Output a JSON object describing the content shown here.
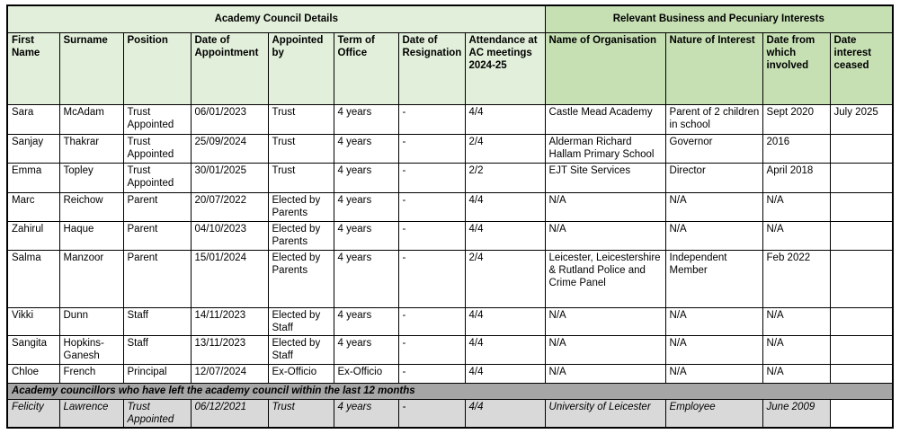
{
  "sections": {
    "left": "Academy Council Details",
    "right": "Relevant Business and Pecuniary Interests"
  },
  "columns": [
    "First Name",
    "Surname",
    "Position",
    "Date of Appointment",
    "Appointed by",
    "Term of Office",
    "Date of Resignation",
    "Attendance at AC meetings 2024-25",
    "Name of Organisation",
    "Nature of Interest",
    "Date from which involved",
    "Date interest ceased"
  ],
  "rows": [
    [
      "Sara",
      "McAdam",
      "Trust Appointed",
      "06/01/2023",
      "Trust",
      "4 years",
      "-",
      "4/4",
      "Castle Mead Academy",
      "Parent of 2 children in school",
      "Sept 2020",
      "July 2025"
    ],
    [
      "Sanjay",
      "Thakrar",
      "Trust Appointed",
      "25/09/2024",
      "Trust",
      "4 years",
      "-",
      "2/4",
      "Alderman Richard Hallam Primary School",
      "Governor",
      "2016",
      ""
    ],
    [
      "Emma",
      "Topley",
      "Trust Appointed",
      "30/01/2025",
      "Trust",
      "4 years",
      "-",
      "2/2",
      "EJT Site Services",
      "Director",
      "April 2018",
      ""
    ],
    [
      "Marc",
      "Reichow",
      "Parent",
      "20/07/2022",
      "Elected by Parents",
      "4 years",
      "-",
      "4/4",
      "N/A",
      "N/A",
      "N/A",
      ""
    ],
    [
      "Zahirul",
      "Haque",
      "Parent",
      "04/10/2023",
      "Elected by Parents",
      "4 years",
      "-",
      "4/4",
      "N/A",
      "N/A",
      "N/A",
      ""
    ],
    [
      "Salma",
      "Manzoor",
      "Parent",
      "15/01/2024",
      "Elected by Parents",
      "4 years",
      "-",
      "2/4",
      "Leicester, Leicestershire & Rutland Police and Crime Panel",
      "Independent Member",
      "Feb 2022",
      ""
    ],
    [
      "Vikki",
      "Dunn",
      "Staff",
      "14/11/2023",
      "Elected by Staff",
      "4 years",
      "-",
      "4/4",
      "N/A",
      "N/A",
      "N/A",
      ""
    ],
    [
      "Sangita",
      "Hopkins-Ganesh",
      "Staff",
      "13/11/2023",
      "Elected by Staff",
      "4 years",
      "-",
      "4/4",
      "N/A",
      "N/A",
      "N/A",
      ""
    ],
    [
      "Chloe",
      "French",
      "Principal",
      "12/07/2024",
      "Ex-Officio",
      "Ex-Officio",
      "-",
      "4/4",
      "N/A",
      "N/A",
      "N/A",
      ""
    ]
  ],
  "leavers": {
    "band_label": "Academy councillors who have left the academy council within the last 12 months",
    "rows": [
      [
        "Felicity",
        "Lawrence",
        "Trust Appointed",
        "06/12/2021",
        "Trust",
        "4 years",
        "-",
        "4/4",
        "University of Leicester",
        "Employee",
        "June 2009",
        ""
      ]
    ]
  },
  "colors": {
    "left_section_green": "#e2efda",
    "right_section_green": "#c6e0b4",
    "band_gray": "#a6a6a6",
    "leaver_row_gray": "#d9d9d9",
    "border_black": "#000000"
  }
}
